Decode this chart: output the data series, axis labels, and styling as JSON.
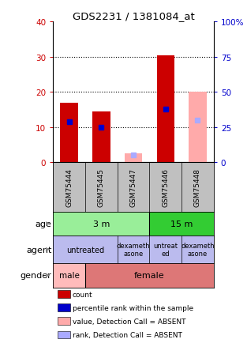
{
  "title": "GDS2231 / 1381084_at",
  "samples": [
    "GSM75444",
    "GSM75445",
    "GSM75447",
    "GSM75446",
    "GSM75448"
  ],
  "bar_data": [
    {
      "name": "GSM75444",
      "count": 17,
      "rank": 11.5,
      "absent_value": null,
      "absent_rank": null
    },
    {
      "name": "GSM75445",
      "count": 14.5,
      "rank": 10,
      "absent_value": null,
      "absent_rank": null
    },
    {
      "name": "GSM75447",
      "count": null,
      "rank": null,
      "absent_value": 2.5,
      "absent_rank": 2
    },
    {
      "name": "GSM75446",
      "count": 30.5,
      "rank": 15,
      "absent_value": null,
      "absent_rank": null
    },
    {
      "name": "GSM75448",
      "count": null,
      "rank": null,
      "absent_value": 20,
      "absent_rank": 12
    }
  ],
  "ylim": [
    0,
    40
  ],
  "y2lim": [
    0,
    100
  ],
  "yticks": [
    0,
    10,
    20,
    30,
    40
  ],
  "ytick_labels": [
    "0",
    "10",
    "20",
    "30",
    "40"
  ],
  "y2ticks": [
    0,
    25,
    50,
    75,
    100
  ],
  "y2tick_labels": [
    "0",
    "25",
    "50",
    "75",
    "100%"
  ],
  "grid_lines": [
    10,
    20,
    30
  ],
  "bar_width": 0.55,
  "colors": {
    "count_bar": "#cc0000",
    "rank_marker": "#0000cc",
    "absent_value_bar": "#ffaaaa",
    "absent_rank_marker": "#aaaaff",
    "plot_bg": "#ffffff",
    "sample_bg": "#c0c0c0",
    "age_3m_bg": "#99ee99",
    "age_15m_bg": "#33cc33",
    "agent_bg": "#bbbbee",
    "gender_male_bg": "#ffbbbb",
    "gender_female_bg": "#dd7777",
    "left_axis_color": "#cc0000",
    "right_axis_color": "#0000cc"
  },
  "legend_items": [
    {
      "label": "count",
      "color": "#cc0000"
    },
    {
      "label": "percentile rank within the sample",
      "color": "#0000cc"
    },
    {
      "label": "value, Detection Call = ABSENT",
      "color": "#ffaaaa"
    },
    {
      "label": "rank, Detection Call = ABSENT",
      "color": "#aaaaff"
    }
  ]
}
